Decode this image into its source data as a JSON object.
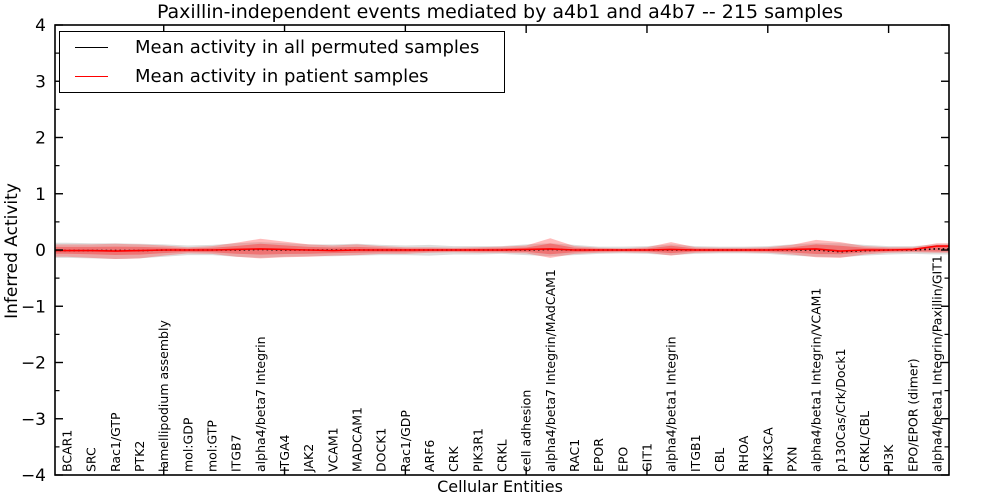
{
  "chart_data": {
    "type": "line",
    "title": "Paxillin-independent events mediated by a4b1 and a4b7 -- 215 samples",
    "xlabel": "Cellular Entities",
    "ylabel": "Inferred Activity",
    "ylim": [
      -4,
      4
    ],
    "yticks": [
      4,
      3,
      2,
      1,
      0,
      -1,
      -2,
      -3,
      -4
    ],
    "y_minor_step": 0.5,
    "x_major_tick_units": [
      5,
      10,
      15,
      20,
      25,
      30,
      35
    ],
    "grid": false,
    "legend_position": "upper left",
    "categories": [
      "BCAR1",
      "SRC",
      "Rac1/GTP",
      "PTK2",
      "lamellipodium assembly",
      "mol:GDP",
      "mol:GTP",
      "ITGB7",
      "alpha4/beta7 Integrin",
      "ITGA4",
      "JAK2",
      "VCAM1",
      "MADCAM1",
      "DOCK1",
      "Rac1/GDP",
      "ARF6",
      "CRK",
      "PIK3R1",
      "CRKL",
      "cell adhesion",
      "alpha4/beta7 Integrin/MAdCAM1",
      "RAC1",
      "EPOR",
      "EPO",
      "GIT1",
      "alpha4/beta1 Integrin",
      "ITGB1",
      "CBL",
      "RHOA",
      "PIK3CA",
      "PXN",
      "alpha4/beta1 Integrin/VCAM1",
      "p130Cas/Crk/Dock1",
      "CRKL/CBL",
      "PI3K",
      "EPO/EPOR (dimer)",
      "alpha4/beta1 Integrin/Paxillin/GIT1"
    ],
    "series": [
      {
        "name": "Mean activity in all permuted samples",
        "color": "#000000",
        "style": "dotted",
        "values": [
          -0.01,
          -0.01,
          -0.01,
          -0.01,
          0,
          0,
          0,
          0,
          0.01,
          0,
          0,
          0,
          0,
          0,
          0,
          0,
          0,
          0,
          0,
          0,
          0.01,
          0,
          0,
          0,
          0,
          0,
          0,
          0,
          0,
          0,
          0,
          0,
          -0.03,
          -0.01,
          0,
          0,
          0.02
        ]
      },
      {
        "name": "Mean activity in patient samples",
        "color": "#ff0000",
        "style": "solid",
        "values": [
          -0.01,
          -0.01,
          -0.02,
          -0.01,
          0,
          0,
          0,
          0.01,
          0.02,
          0.01,
          0,
          -0.01,
          0,
          0,
          0,
          0,
          0,
          0,
          0,
          0.01,
          0.02,
          0,
          0,
          0,
          0,
          0.01,
          0,
          0,
          0,
          0,
          0.01,
          0.02,
          -0.02,
          0,
          0,
          0.01,
          0.07
        ]
      }
    ],
    "bands": [
      {
        "name": "permuted-sample-spread",
        "color": "#787878",
        "opacity": 0.25,
        "scale": 1,
        "upper": [
          0.13,
          0.12,
          0.12,
          0.11,
          0.1,
          0.08,
          0.09,
          0.12,
          0.14,
          0.12,
          0.1,
          0.1,
          0.11,
          0.09,
          0.08,
          0.09,
          0.07,
          0.07,
          0.07,
          0.1,
          0.12,
          0.09,
          0.06,
          0.06,
          0.07,
          0.1,
          0.07,
          0.06,
          0.06,
          0.07,
          0.1,
          0.12,
          0.12,
          0.09,
          0.07,
          0.07,
          0.1
        ],
        "lower": [
          -0.14,
          -0.15,
          -0.16,
          -0.15,
          -0.12,
          -0.09,
          -0.09,
          -0.12,
          -0.14,
          -0.12,
          -0.11,
          -0.11,
          -0.1,
          -0.09,
          -0.09,
          -0.1,
          -0.08,
          -0.08,
          -0.07,
          -0.09,
          -0.11,
          -0.09,
          -0.07,
          -0.06,
          -0.07,
          -0.09,
          -0.07,
          -0.06,
          -0.06,
          -0.07,
          -0.1,
          -0.12,
          -0.13,
          -0.1,
          -0.08,
          -0.07,
          -0.08
        ]
      },
      {
        "name": "patient-sample-spread",
        "color": "#ff3c3c",
        "opacity": 0.35,
        "scale": 1,
        "upper": [
          0.1,
          0.1,
          0.11,
          0.1,
          0.08,
          0.05,
          0.07,
          0.13,
          0.2,
          0.15,
          0.1,
          0.08,
          0.1,
          0.07,
          0.05,
          0.05,
          0.04,
          0.05,
          0.06,
          0.08,
          0.21,
          0.07,
          0.04,
          0.03,
          0.05,
          0.14,
          0.05,
          0.04,
          0.04,
          0.05,
          0.09,
          0.18,
          0.14,
          0.07,
          0.05,
          0.05,
          0.12
        ],
        "lower": [
          -0.12,
          -0.14,
          -0.16,
          -0.15,
          -0.1,
          -0.06,
          -0.07,
          -0.12,
          -0.15,
          -0.13,
          -0.12,
          -0.1,
          -0.09,
          -0.07,
          -0.07,
          -0.05,
          -0.04,
          -0.05,
          -0.05,
          -0.06,
          -0.14,
          -0.07,
          -0.05,
          -0.04,
          -0.05,
          -0.1,
          -0.05,
          -0.04,
          -0.04,
          -0.05,
          -0.08,
          -0.13,
          -0.14,
          -0.08,
          -0.05,
          -0.04,
          -0.05
        ]
      },
      {
        "name": "patient-sample-core",
        "color": "#ff0000",
        "opacity": 0.3,
        "scale": 0.55,
        "upper": [
          0.1,
          0.1,
          0.11,
          0.1,
          0.08,
          0.05,
          0.07,
          0.13,
          0.2,
          0.15,
          0.1,
          0.08,
          0.1,
          0.07,
          0.05,
          0.05,
          0.04,
          0.05,
          0.06,
          0.08,
          0.21,
          0.07,
          0.04,
          0.03,
          0.05,
          0.14,
          0.05,
          0.04,
          0.04,
          0.05,
          0.09,
          0.18,
          0.14,
          0.07,
          0.05,
          0.05,
          0.12
        ],
        "lower": [
          -0.12,
          -0.14,
          -0.16,
          -0.15,
          -0.1,
          -0.06,
          -0.07,
          -0.12,
          -0.15,
          -0.13,
          -0.12,
          -0.1,
          -0.09,
          -0.07,
          -0.07,
          -0.05,
          -0.04,
          -0.05,
          -0.05,
          -0.06,
          -0.14,
          -0.07,
          -0.05,
          -0.04,
          -0.05,
          -0.1,
          -0.05,
          -0.04,
          -0.04,
          -0.05,
          -0.08,
          -0.13,
          -0.14,
          -0.08,
          -0.05,
          -0.04,
          -0.05
        ]
      }
    ]
  },
  "legend": {
    "items": [
      {
        "label": "Mean activity in all permuted samples",
        "color": "#000000"
      },
      {
        "label": "Mean activity in patient samples",
        "color": "#ff0000"
      }
    ]
  }
}
